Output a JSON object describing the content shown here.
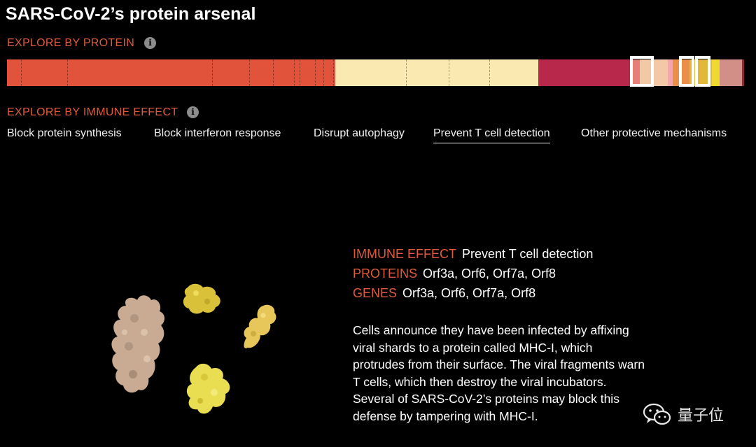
{
  "header": {
    "title": "SARS-CoV-2’s protein arsenal"
  },
  "explore_protein": {
    "label": "EXPLORE BY PROTEIN",
    "info_icon": "info-icon",
    "segments": [
      {
        "color": "#e1533a",
        "fraction": 0.445
      },
      {
        "color": "#fbe9b2",
        "fraction": 0.275
      },
      {
        "color": "#b8284a",
        "fraction": 0.124
      },
      {
        "color": "#e47f7a",
        "fraction": 0.013
      },
      {
        "color": "#f3c8a7",
        "fraction": 0.038
      },
      {
        "color": "#f5a5ae",
        "fraction": 0.007
      },
      {
        "color": "#ea8f47",
        "fraction": 0.023
      },
      {
        "color": "#e2b83a",
        "fraction": 0.03
      },
      {
        "color": "#efd92f",
        "fraction": 0.01
      },
      {
        "color": "#d18f88",
        "fraction": 0.03
      },
      {
        "color": "#8c2b34",
        "fraction": 0.005
      }
    ],
    "selected": [
      "Orf3a",
      "Orf6",
      "Orf7a",
      "Orf8"
    ]
  },
  "explore_immune": {
    "label": "EXPLORE BY IMMUNE EFFECT",
    "info_icon": "info-icon",
    "tabs": [
      {
        "label": "Block protein synthesis",
        "active": false
      },
      {
        "label": "Block interferon response",
        "active": false
      },
      {
        "label": "Disrupt autophagy",
        "active": false
      },
      {
        "label": "Prevent T cell detection",
        "active": true
      },
      {
        "label": "Other protective mechanisms",
        "active": false
      }
    ]
  },
  "detail": {
    "immune_effect_key": "IMMUNE EFFECT",
    "immune_effect_val": "Prevent T cell detection",
    "proteins_key": "PROTEINS",
    "proteins_val": "Orf3a, Orf6, Orf7a, Orf8",
    "genes_key": "GENES",
    "genes_val": "Orf3a, Orf6, Orf7a, Orf8",
    "description": "Cells announce they have been infected by affixing viral shards to a protein called MHC-I, which protrudes from their surface. The viral fragments warn T cells, which then destroy the viral incubators. Several of SARS-CoV-2’s proteins may block this defense by tampering with MHC-I."
  },
  "protein_models": {
    "colors": {
      "large": "#c9ab93",
      "yellow": "#e9dd52",
      "orange_yellow": "#e8c75a"
    }
  },
  "watermark": {
    "text": "量子位",
    "icon": "wechat-icon"
  }
}
